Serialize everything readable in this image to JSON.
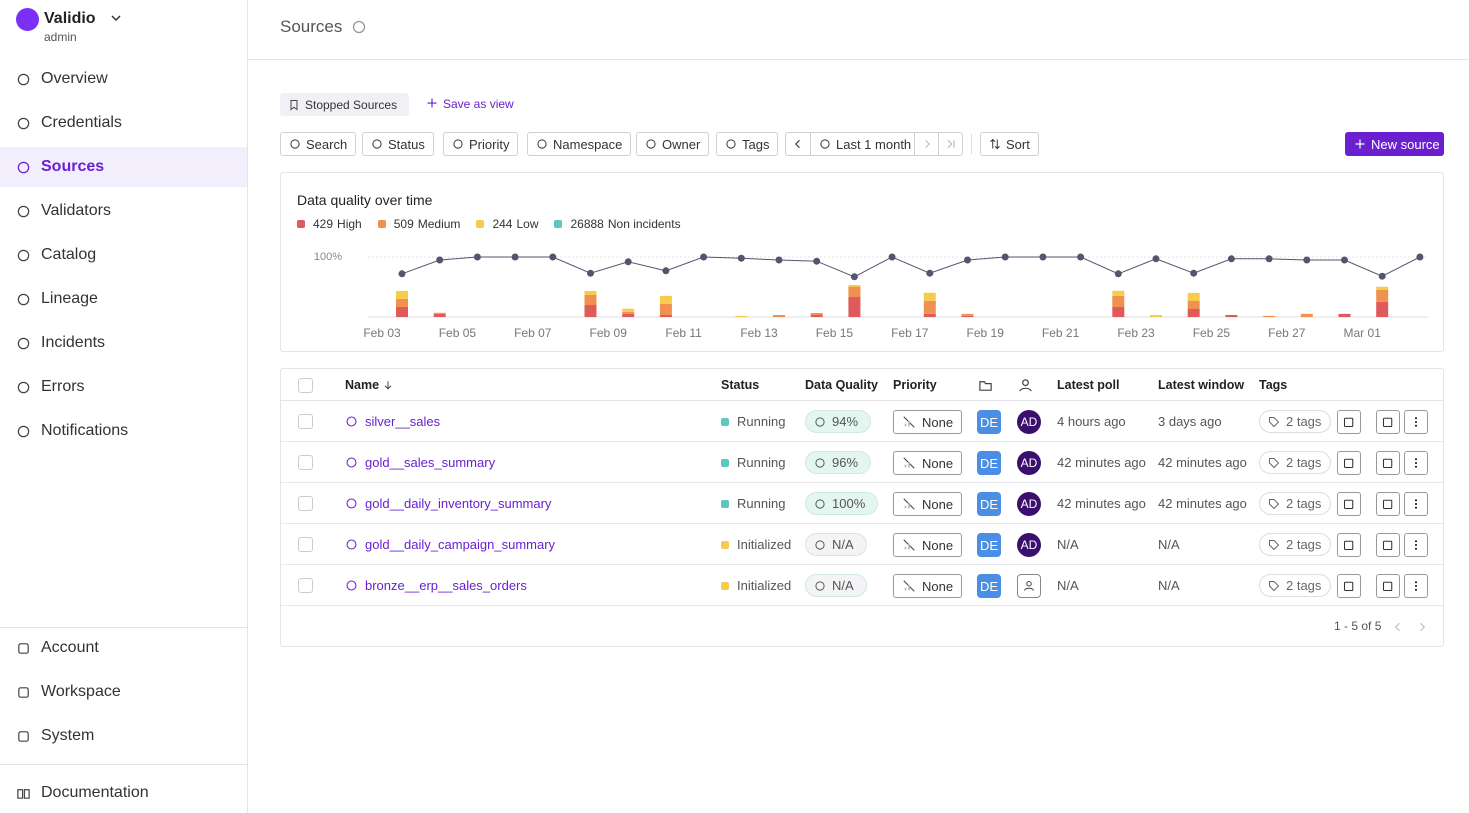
{
  "sidebar": {
    "brand": "Validio",
    "role": "admin",
    "nav": [
      "Overview",
      "Credentials",
      "Sources",
      "Validators",
      "Catalog",
      "Lineage",
      "Incidents",
      "Errors",
      "Notifications"
    ],
    "bottom_nav": [
      "Account",
      "Workspace",
      "System"
    ],
    "docs": "Documentation"
  },
  "header": {
    "title": "Sources"
  },
  "views": {
    "saved_view": "Stopped Sources",
    "save_action": "Save as view"
  },
  "filters": [
    "Search",
    "Status",
    "Priority",
    "Namespace",
    "Owner",
    "Tags"
  ],
  "time_range": "Last 1 month",
  "sort": "Sort",
  "new_source": "New source",
  "chart_data": {
    "type": "bar",
    "title": "Data quality over time",
    "legend": [
      {
        "count": 429,
        "name": "High",
        "color": "#e05a5c"
      },
      {
        "count": 509,
        "name": "Medium",
        "color": "#f0914f"
      },
      {
        "count": 244,
        "name": "Low",
        "color": "#f7cb4d"
      },
      {
        "count": 26888,
        "name": "Non incidents",
        "color": "#5cc8bf"
      }
    ],
    "categories": [
      "Feb 03",
      null,
      "Feb 05",
      null,
      "Feb 07",
      null,
      "Feb 09",
      null,
      "Feb 11",
      null,
      "Feb 13",
      null,
      "Feb 15",
      null,
      "Feb 17",
      null,
      "Feb 19",
      null,
      "Feb 21",
      null,
      "Feb 23",
      null,
      "Feb 25",
      null,
      "Feb 27",
      null,
      "Mar 01",
      null
    ],
    "line": {
      "color": "#55546f",
      "values": [
        72,
        95,
        100,
        100,
        100,
        73,
        92,
        77,
        100,
        98,
        95,
        93,
        67,
        100,
        73,
        95,
        100,
        100,
        100,
        72,
        97,
        73,
        97,
        97,
        95,
        95,
        68,
        100
      ]
    },
    "series": [
      {
        "color": "#e05a5c",
        "axis": "y2",
        "values": [
          45,
          14,
          0,
          0,
          0,
          54,
          14,
          9,
          0,
          0,
          0,
          9,
          90,
          0,
          14,
          5,
          0,
          0,
          0,
          45,
          0,
          36,
          9,
          0,
          0,
          14,
          68,
          0
        ]
      },
      {
        "color": "#f0914f",
        "axis": "y2",
        "values": [
          36,
          5,
          0,
          0,
          0,
          45,
          9,
          50,
          0,
          0,
          9,
          9,
          45,
          0,
          59,
          9,
          0,
          0,
          0,
          50,
          0,
          36,
          0,
          5,
          14,
          0,
          54,
          0
        ]
      },
      {
        "color": "#f7cb4d",
        "axis": "y2",
        "values": [
          36,
          0,
          0,
          0,
          0,
          18,
          14,
          36,
          0,
          5,
          0,
          0,
          9,
          0,
          36,
          0,
          0,
          0,
          0,
          23,
          9,
          36,
          0,
          0,
          0,
          0,
          14,
          0
        ]
      }
    ],
    "ylim": [
      0,
      100
    ],
    "yticks": [
      {
        "value": 100,
        "label": "100%"
      }
    ],
    "y2lim": [
      0,
      270
    ],
    "grid": true
  },
  "table": {
    "columns": [
      "Name",
      "Status",
      "Data Quality",
      "Priority",
      "Latest poll",
      "Latest window",
      "Tags"
    ],
    "rows": [
      {
        "name": "silver__sales",
        "status": "Running",
        "status_color": "#5cc8bf",
        "data_quality": "94%",
        "data_quality_color": "#e4f6f1",
        "priority": "None",
        "namespace": "DE",
        "owner": "AD",
        "latest_poll": "4 hours ago",
        "latest_window": "3 days ago",
        "tags": "2 tags"
      },
      {
        "name": "gold__sales_summary",
        "status": "Running",
        "status_color": "#5cc8bf",
        "data_quality": "96%",
        "data_quality_color": "#e4f6f1",
        "priority": "None",
        "namespace": "DE",
        "owner": "AD",
        "latest_poll": "42 minutes ago",
        "latest_window": "42 minutes ago",
        "tags": "2 tags"
      },
      {
        "name": "gold__daily_inventory_summary",
        "status": "Running",
        "status_color": "#5cc8bf",
        "data_quality": "100%",
        "data_quality_color": "#e4f6f1",
        "priority": "None",
        "namespace": "DE",
        "owner": "AD",
        "latest_poll": "42 minutes ago",
        "latest_window": "42 minutes ago",
        "tags": "2 tags"
      },
      {
        "name": "gold__daily_campaign_summary",
        "status": "Initialized",
        "status_color": "#f7cb4d",
        "data_quality": "N/A",
        "data_quality_color": "#f4f4f6",
        "priority": "None",
        "namespace": "DE",
        "owner": "AD",
        "latest_poll": "N/A",
        "latest_window": "N/A",
        "tags": "2 tags"
      },
      {
        "name": "bronze__erp__sales_orders",
        "status": "Initialized",
        "status_color": "#f7cb4d",
        "data_quality": "N/A",
        "data_quality_color": "#f4f4f6",
        "priority": "None",
        "namespace": "DE",
        "latest_poll": "N/A",
        "latest_window": "N/A",
        "tags": "2 tags"
      }
    ]
  },
  "pagination": "1 - 5 of 5"
}
